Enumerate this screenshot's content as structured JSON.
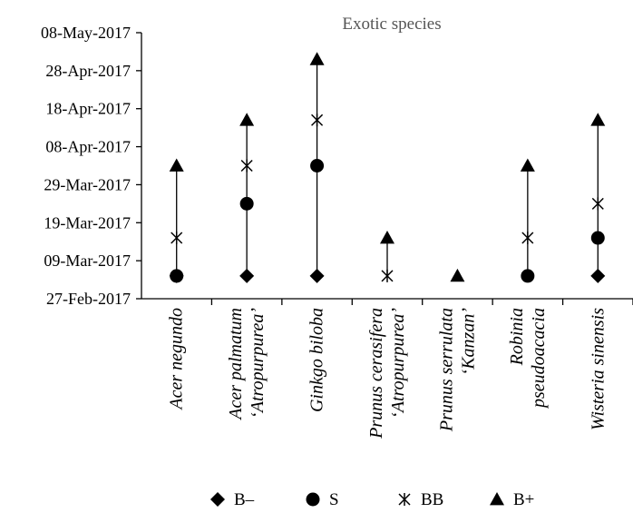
{
  "chart_data": {
    "type": "scatter",
    "title": "Exotic species",
    "y_ticks": [
      "2017-02-27",
      "2017-03-09",
      "2017-03-19",
      "2017-03-29",
      "2017-04-08",
      "2017-04-18",
      "2017-04-28",
      "2017-05-08"
    ],
    "y_tick_labels": [
      "27-Feb-2017",
      "09-Mar-2017",
      "19-Mar-2017",
      "29-Mar-2017",
      "08-Apr-2017",
      "18-Apr-2017",
      "28-Apr-2017",
      "08-May-2017"
    ],
    "ylim": [
      "2017-02-27",
      "2017-05-08"
    ],
    "categories": [
      [
        "Acer negundo"
      ],
      [
        "Acer palmatum",
        "‘Atropurpurea’"
      ],
      [
        "Ginkgo biloba"
      ],
      [
        "Prunus cerasifera",
        "‘Atropurpurea’"
      ],
      [
        "Prunus serrulata",
        "‘Kanzan’"
      ],
      [
        "Robinia",
        "pseudoacacia"
      ],
      [
        "Wisteria sinensis"
      ]
    ],
    "series": [
      {
        "name": "B–",
        "marker": "diamond",
        "values": [
          "2017-03-05",
          "2017-03-05",
          "2017-03-05",
          null,
          null,
          null,
          "2017-03-05"
        ]
      },
      {
        "name": "S",
        "marker": "circle",
        "values": [
          "2017-03-05",
          "2017-03-24",
          "2017-04-03",
          null,
          null,
          "2017-03-05",
          "2017-03-15"
        ]
      },
      {
        "name": "BB",
        "marker": "asterisk",
        "values": [
          "2017-03-15",
          "2017-04-03",
          "2017-04-15",
          "2017-03-05",
          null,
          "2017-03-15",
          "2017-03-24"
        ]
      },
      {
        "name": "B+",
        "marker": "triangle",
        "values": [
          "2017-04-03",
          "2017-04-15",
          "2017-05-01",
          "2017-03-15",
          "2017-03-05",
          "2017-04-03",
          "2017-04-15"
        ]
      }
    ],
    "legend_position": "bottom",
    "grid": false
  }
}
